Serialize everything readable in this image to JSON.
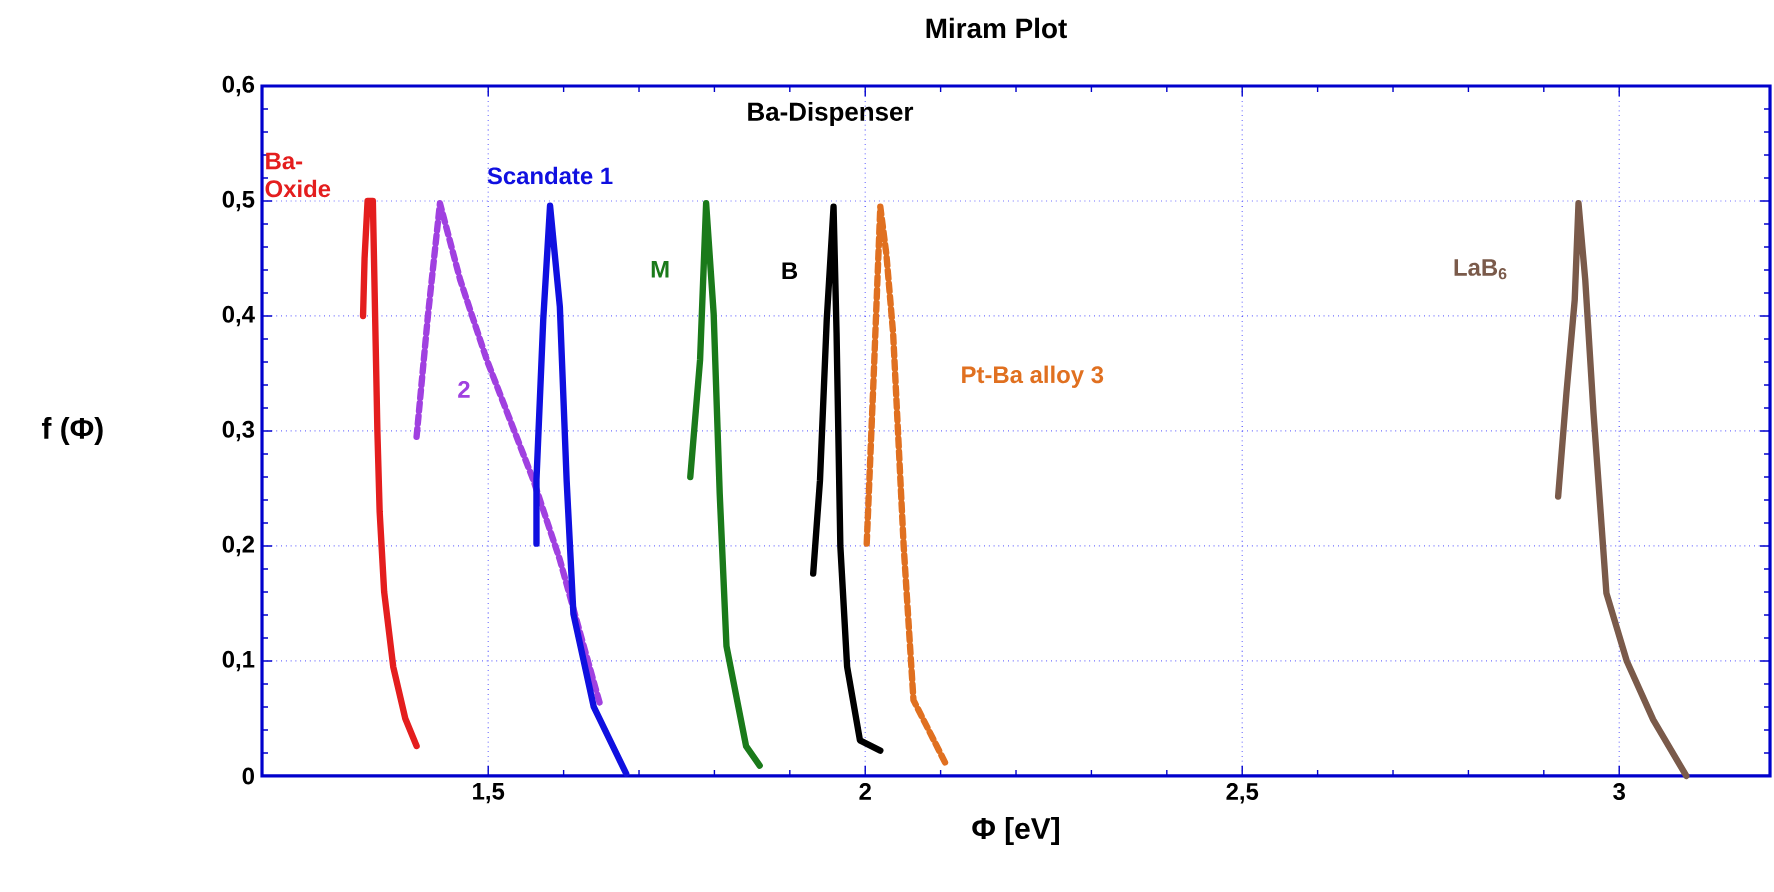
{
  "chart_data": {
    "type": "line",
    "title": "Miram Plot",
    "xlabel": "Φ [eV]",
    "ylabel": "f (Φ)",
    "xlim": [
      1.2,
      3.2
    ],
    "ylim": [
      0,
      0.6
    ],
    "xticks": [
      {
        "value": 1.5,
        "label": "1,5"
      },
      2,
      {
        "value": 2.5,
        "label": "2,5"
      },
      3
    ],
    "yticks": [
      0,
      {
        "value": 0.1,
        "label": "0,1"
      },
      {
        "value": 0.2,
        "label": "0,2"
      },
      {
        "value": 0.3,
        "label": "0,3"
      },
      {
        "value": 0.4,
        "label": "0,4"
      },
      {
        "value": 0.5,
        "label": "0,5"
      },
      {
        "value": 0.6,
        "label": "0,6"
      }
    ],
    "grid": true,
    "marker": "none",
    "annotations": [
      "Ba-Dispenser"
    ],
    "series": [
      {
        "name": "Ba-Oxide",
        "color": "#e41e1e",
        "line_style": "solid",
        "x": [
          1.334,
          1.336,
          1.34,
          1.347,
          1.35,
          1.353,
          1.356,
          1.362,
          1.374,
          1.39,
          1.405
        ],
        "values": [
          0.4,
          0.45,
          0.5,
          0.5,
          0.4,
          0.3,
          0.23,
          0.16,
          0.095,
          0.05,
          0.026
        ]
      },
      {
        "name": "2",
        "color": "#a040e0",
        "line_style": "dashed",
        "x": [
          1.405,
          1.42,
          1.436,
          1.463,
          1.498,
          1.56,
          1.595,
          1.622,
          1.648
        ],
        "values": [
          0.295,
          0.4,
          0.498,
          0.431,
          0.362,
          0.257,
          0.188,
          0.124,
          0.063
        ]
      },
      {
        "name": "Scandate 1",
        "color": "#1010e0",
        "line_style": "solid",
        "x": [
          1.564,
          1.564,
          1.573,
          1.582,
          1.595,
          1.604,
          1.613,
          1.64,
          1.683
        ],
        "values": [
          0.202,
          0.258,
          0.397,
          0.496,
          0.408,
          0.257,
          0.141,
          0.06,
          0.002
        ]
      },
      {
        "name": "M",
        "color": "#1a7a1a",
        "line_style": "solid",
        "x": [
          1.768,
          1.781,
          1.789,
          1.799,
          1.807,
          1.816,
          1.842,
          1.86
        ],
        "values": [
          0.26,
          0.362,
          0.498,
          0.402,
          0.246,
          0.113,
          0.026,
          0.009
        ]
      },
      {
        "name": "B",
        "color": "#000000",
        "line_style": "solid",
        "x": [
          1.931,
          1.94,
          1.949,
          1.958,
          1.962,
          1.967,
          1.976,
          1.993,
          2.02
        ],
        "values": [
          0.176,
          0.257,
          0.397,
          0.495,
          0.385,
          0.2,
          0.095,
          0.031,
          0.022
        ]
      },
      {
        "name": "Pt-Ba alloy 3",
        "color": "#e07020",
        "line_style": "dashed",
        "x": [
          2.002,
          2.011,
          2.02,
          2.028,
          2.037,
          2.051,
          2.064,
          2.108
        ],
        "values": [
          0.202,
          0.344,
          0.495,
          0.454,
          0.385,
          0.2,
          0.066,
          0.009
        ]
      },
      {
        "name": "LaB$_{6}$",
        "color": "#7a5a4a",
        "line_style": "solid",
        "x": [
          2.919,
          2.93,
          2.941,
          2.946,
          2.955,
          2.966,
          2.983,
          3.01,
          3.045,
          3.089
        ],
        "values": [
          0.243,
          0.333,
          0.414,
          0.498,
          0.431,
          0.315,
          0.159,
          0.1,
          0.049,
          0.0
        ]
      }
    ]
  }
}
